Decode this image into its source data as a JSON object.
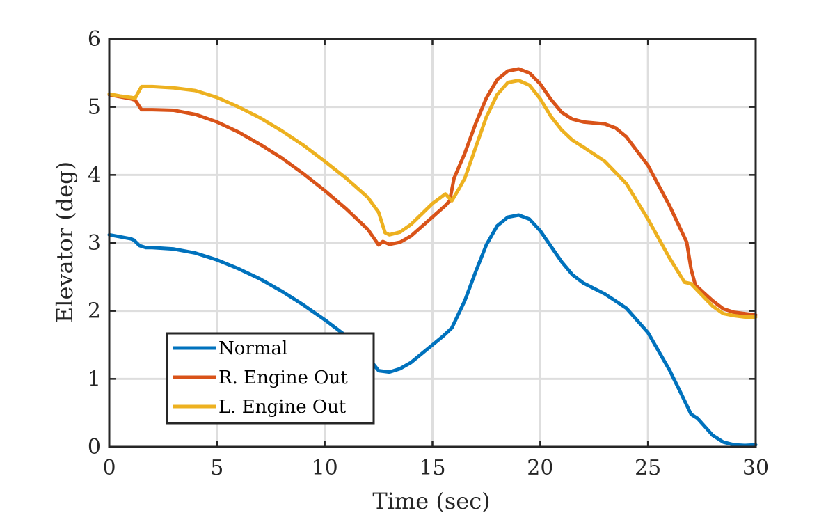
{
  "chart_data": {
    "type": "line",
    "title": "",
    "xlabel": "Time (sec)",
    "ylabel": "Elevator (deg)",
    "xlim": [
      0,
      30
    ],
    "ylim": [
      0,
      6
    ],
    "xticks": [
      0,
      5,
      10,
      15,
      20,
      25,
      30
    ],
    "yticks": [
      0,
      1,
      2,
      3,
      4,
      5,
      6
    ],
    "grid": true,
    "legend_position": "bottom-left",
    "series": [
      {
        "name": "Normal",
        "color": "#0072BD",
        "x": [
          0,
          0.5,
          1.0,
          1.15,
          1.4,
          1.7,
          2,
          3,
          4,
          5,
          6,
          7,
          8,
          9,
          10,
          11,
          12,
          12.5,
          13,
          13.5,
          14,
          15,
          15.5,
          15.9,
          16.5,
          17,
          17.5,
          18,
          18.5,
          19,
          19.5,
          20,
          20.5,
          21,
          21.5,
          22,
          23,
          24,
          25,
          26,
          26.5,
          27.0,
          27.3,
          28,
          28.5,
          29,
          29.5,
          30
        ],
        "y": [
          3.12,
          3.09,
          3.06,
          3.04,
          2.96,
          2.93,
          2.93,
          2.91,
          2.85,
          2.75,
          2.62,
          2.47,
          2.29,
          2.09,
          1.87,
          1.63,
          1.32,
          1.12,
          1.1,
          1.15,
          1.24,
          1.5,
          1.63,
          1.75,
          2.15,
          2.57,
          2.97,
          3.25,
          3.38,
          3.41,
          3.35,
          3.18,
          2.95,
          2.72,
          2.53,
          2.41,
          2.25,
          2.04,
          1.68,
          1.13,
          0.81,
          0.48,
          0.42,
          0.17,
          0.07,
          0.03,
          0.02,
          0.03
        ]
      },
      {
        "name": "R. Engine Out",
        "color": "#D95319",
        "x": [
          0,
          0.5,
          1.0,
          1.2,
          1.5,
          2,
          3,
          4,
          5,
          6,
          7,
          8,
          9,
          10,
          11,
          12,
          12.5,
          12.7,
          13,
          13.5,
          14,
          15,
          15.6,
          15.8,
          16,
          16.5,
          17,
          17.5,
          18,
          18.5,
          19,
          19.5,
          20,
          20.5,
          21,
          21.5,
          22,
          23,
          23.5,
          24,
          25,
          26,
          26.8,
          27.0,
          27.2,
          28,
          28.5,
          29,
          29.5,
          30
        ],
        "y": [
          5.18,
          5.15,
          5.12,
          5.1,
          4.96,
          4.96,
          4.95,
          4.89,
          4.78,
          4.63,
          4.45,
          4.25,
          4.02,
          3.77,
          3.5,
          3.2,
          2.97,
          3.02,
          2.98,
          3.01,
          3.1,
          3.38,
          3.55,
          3.62,
          3.95,
          4.32,
          4.75,
          5.13,
          5.4,
          5.53,
          5.56,
          5.5,
          5.34,
          5.11,
          4.92,
          4.82,
          4.78,
          4.75,
          4.69,
          4.56,
          4.14,
          3.55,
          3.01,
          2.62,
          2.38,
          2.15,
          2.03,
          1.98,
          1.96,
          1.94
        ]
      },
      {
        "name": "L. Engine Out",
        "color": "#EDB120",
        "x": [
          0,
          0.5,
          1.0,
          1.2,
          1.5,
          2,
          3,
          4,
          5,
          6,
          7,
          8,
          9,
          10,
          11,
          12,
          12.5,
          12.8,
          13,
          13.5,
          14,
          15,
          15.6,
          15.9,
          16.2,
          16.5,
          17,
          17.5,
          18,
          18.5,
          19,
          19.5,
          20,
          20.5,
          21,
          21.5,
          22,
          23,
          24,
          25,
          26,
          26.7,
          27.0,
          27.3,
          28,
          28.5,
          29,
          29.5,
          30
        ],
        "y": [
          5.19,
          5.16,
          5.14,
          5.13,
          5.3,
          5.3,
          5.28,
          5.24,
          5.14,
          5.0,
          4.84,
          4.65,
          4.44,
          4.2,
          3.95,
          3.67,
          3.45,
          3.15,
          3.12,
          3.16,
          3.27,
          3.58,
          3.72,
          3.62,
          3.78,
          3.95,
          4.4,
          4.85,
          5.18,
          5.36,
          5.39,
          5.32,
          5.12,
          4.86,
          4.66,
          4.51,
          4.41,
          4.2,
          3.87,
          3.35,
          2.78,
          2.42,
          2.4,
          2.3,
          2.07,
          1.96,
          1.93,
          1.91,
          1.91
        ]
      }
    ]
  }
}
